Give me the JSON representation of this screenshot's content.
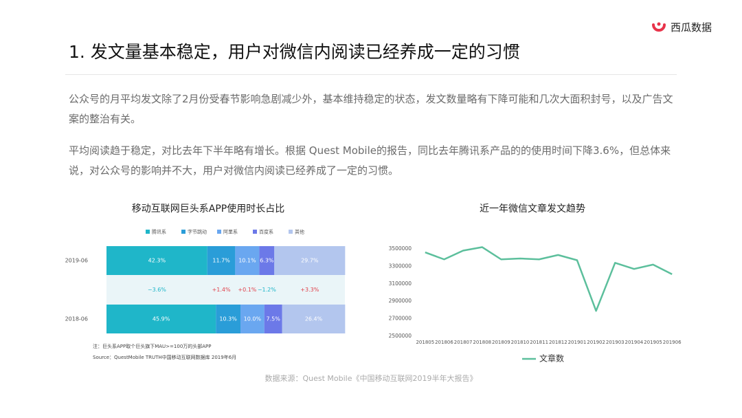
{
  "header": {
    "title": "1. 发文量基本稳定，用户对微信内阅读已经养成一定的习惯",
    "logo": "西瓜数据"
  },
  "paragraphs": [
    "公众号的月平均发文除了2月份受春节影响急剧减少外，基本维持稳定的状态，发文数量略有下降可能和几次大面积封号，以及广告文案的整治有关。",
    "平均阅读趋于稳定，对比去年下半年略有增长。根据 Quest Mobile的报告，同比去年腾讯系产品的的使用时间下降3.6%，但总体来说，对公众号的影响并不大，用户对微信内阅读已经养成了一定的习惯。"
  ],
  "footer": "数据来源：Quest Mobile《中国移动互联网2019半年大报告》",
  "chart_data": [
    {
      "type": "stacked-bar",
      "title": "移动互联网巨头系APP使用时长占比",
      "categories": [
        "2019-06",
        "2018-06"
      ],
      "xlim": [
        0,
        100
      ],
      "series": [
        {
          "name": "腾讯系",
          "color": "#1fb6c9",
          "values": [
            42.3,
            45.9
          ],
          "value_labels": [
            "42.3%",
            "45.9%"
          ]
        },
        {
          "name": "字节跳动",
          "color": "#2a9dd8",
          "values": [
            11.7,
            10.3
          ],
          "value_labels": [
            "11.7%",
            "10.3%"
          ]
        },
        {
          "name": "阿里系",
          "color": "#6aa7f0",
          "values": [
            10.1,
            10.0
          ],
          "value_labels": [
            "10.1%",
            "10.0%"
          ]
        },
        {
          "name": "百度系",
          "color": "#6c79e8",
          "values": [
            6.3,
            7.5
          ],
          "value_labels": [
            "6.3%",
            "7.5%"
          ]
        },
        {
          "name": "其他",
          "color": "#b3c6ee",
          "values": [
            29.7,
            26.4
          ],
          "value_labels": [
            "29.7%",
            "26.4%"
          ]
        }
      ],
      "changes": {
        "values": [
          -3.6,
          1.4,
          0.1,
          -1.2,
          3.3
        ],
        "value_labels": [
          "−3.6%",
          "+1.4%",
          "+0.1%",
          "−1.2%",
          "+3.3%"
        ]
      },
      "notes": [
        "注：巨头系APP取个巨头旗下MAU>=100万的头部APP",
        "Source：QuestMobile TRUTH中国移动互联网数据库 2019年6月"
      ]
    },
    {
      "type": "line",
      "title": "近一年微信文章发文趋势",
      "categories": [
        "201805",
        "201806",
        "201807",
        "201808",
        "201809",
        "201810",
        "201811",
        "201812",
        "201901",
        "201902",
        "201903",
        "201904",
        "201905",
        "201906"
      ],
      "series": [
        {
          "name": "文章数",
          "color": "#5cbf9c",
          "values": [
            3460000,
            3380000,
            3480000,
            3520000,
            3380000,
            3390000,
            3380000,
            3430000,
            3370000,
            2790000,
            3340000,
            3270000,
            3320000,
            3210000
          ]
        }
      ],
      "ylim": [
        2500000,
        3500000
      ],
      "yticks": [
        2500000,
        2700000,
        2900000,
        3100000,
        3300000,
        3500000
      ],
      "grid": false
    }
  ]
}
